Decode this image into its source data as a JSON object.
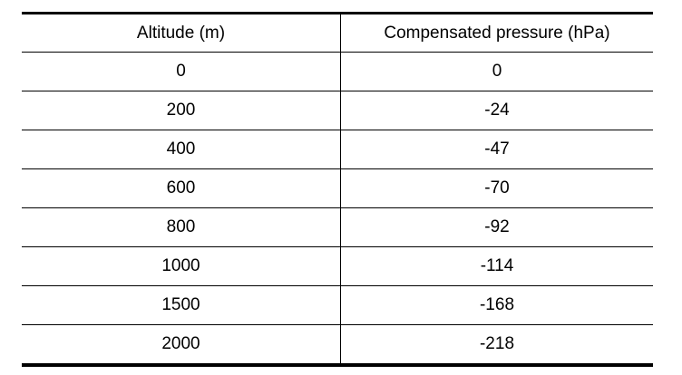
{
  "table": {
    "header": [
      "Altitude (m)",
      "Compensated pressure (hPa)"
    ],
    "rows": [
      [
        0,
        0
      ],
      [
        200,
        -24
      ],
      [
        400,
        -47
      ],
      [
        600,
        -70
      ],
      [
        800,
        -92
      ],
      [
        1000,
        -114
      ],
      [
        1500,
        -168
      ],
      [
        2000,
        -218
      ]
    ]
  }
}
